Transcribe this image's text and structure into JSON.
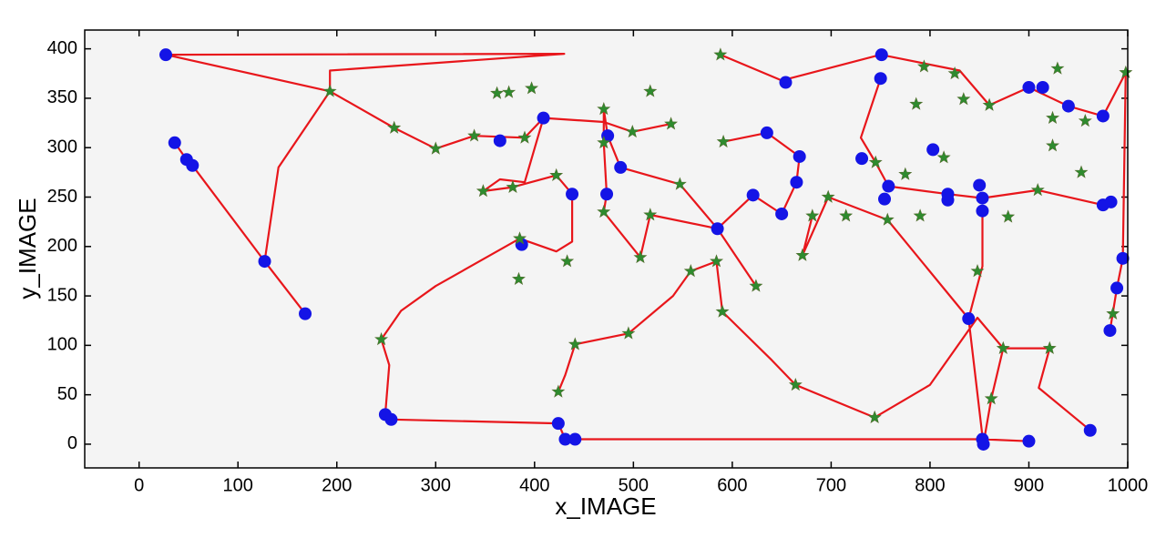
{
  "chart_data": {
    "type": "scatter",
    "xlabel": "x_IMAGE",
    "ylabel": "y_IMAGE",
    "xlim": [
      -55,
      1000
    ],
    "ylim": [
      -24,
      419
    ],
    "xticks": [
      0,
      100,
      200,
      300,
      400,
      500,
      600,
      700,
      800,
      900,
      1000
    ],
    "yticks": [
      0,
      50,
      100,
      150,
      200,
      250,
      300,
      350,
      400
    ],
    "series": [
      {
        "mode": "line",
        "color": "#e8161b",
        "x": [
          193,
          27,
          430,
          193,
          193,
          141,
          127,
          168,
          null,
          36,
          48,
          54,
          127,
          168,
          null,
          193,
          258,
          300,
          339,
          390,
          409,
          470,
          499,
          538,
          null,
          245,
          253,
          249,
          255,
          424,
          431,
          441,
          853,
          900,
          null,
          245,
          265,
          300,
          385,
          422,
          438,
          438,
          422,
          378,
          348,
          365,
          390,
          409,
          null,
          424,
          431,
          441,
          495,
          540,
          558,
          584,
          590,
          640,
          664,
          744,
          800,
          848,
          874,
          921,
          910,
          962,
          null,
          585,
          547,
          487,
          474,
          470,
          470,
          473,
          470,
          507,
          517,
          585,
          624,
          null,
          588,
          650,
          750,
          830,
          860,
          900,
          940,
          975,
          998,
          995,
          989,
          982,
          null,
          591,
          635,
          668,
          665,
          650,
          621,
          585,
          null,
          750,
          730,
          745,
          758,
          818,
          853,
          909,
          975,
          983,
          null,
          853,
          853,
          839,
          757,
          697,
          671,
          681,
          null,
          839,
          854,
          862,
          874
        ],
        "y": [
          357,
          394,
          395,
          378,
          357,
          280,
          185,
          132,
          null,
          305,
          288,
          282,
          185,
          132,
          null,
          357,
          320,
          299,
          312,
          310,
          330,
          326,
          316,
          324,
          null,
          106,
          80,
          30,
          25,
          21,
          5,
          5,
          5,
          3,
          null,
          106,
          135,
          160,
          208,
          195,
          205,
          253,
          272,
          260,
          256,
          268,
          265,
          330,
          null,
          53,
          70,
          101,
          112,
          150,
          175,
          185,
          134,
          85,
          60,
          27,
          60,
          128,
          97,
          97,
          57,
          14,
          null,
          218,
          263,
          280,
          312,
          339,
          305,
          253,
          235,
          189,
          232,
          218,
          160,
          null,
          394,
          368,
          394,
          378,
          343,
          361,
          342,
          332,
          376,
          188,
          158,
          115,
          null,
          306,
          315,
          291,
          265,
          233,
          252,
          218,
          null,
          370,
          310,
          285,
          261,
          253,
          249,
          257,
          242,
          245,
          null,
          236,
          180,
          127,
          227,
          250,
          191,
          231,
          null,
          127,
          0,
          46,
          97
        ]
      },
      {
        "mode": "markers",
        "marker": "circle",
        "color": "#1414e6",
        "x": [
          27,
          36,
          48,
          54,
          127,
          168,
          249,
          255,
          424,
          431,
          441,
          853,
          854,
          900,
          962,
          982,
          989,
          995,
          983,
          975,
          975,
          940,
          914,
          900,
          751,
          750,
          654,
          635,
          621,
          650,
          665,
          668,
          731,
          758,
          754,
          803,
          818,
          818,
          850,
          853,
          853,
          839,
          585,
          487,
          473,
          474,
          438,
          409,
          365,
          387
        ],
        "y": [
          394,
          305,
          288,
          282,
          185,
          132,
          30,
          25,
          21,
          5,
          5,
          5,
          0,
          3,
          14,
          115,
          158,
          188,
          245,
          242,
          332,
          342,
          361,
          361,
          394,
          370,
          366,
          315,
          252,
          233,
          265,
          291,
          289,
          261,
          248,
          298,
          253,
          247,
          262,
          249,
          236,
          127,
          218,
          280,
          253,
          312,
          253,
          330,
          307,
          202
        ]
      },
      {
        "mode": "markers",
        "marker": "star",
        "color": "#2e8b2e",
        "x": [
          193,
          258,
          300,
          339,
          348,
          362,
          374,
          397,
          390,
          378,
          385,
          384,
          245,
          424,
          441,
          495,
          433,
          422,
          470,
          470,
          470,
          517,
          499,
          538,
          507,
          517,
          547,
          558,
          584,
          590,
          588,
          591,
          624,
          664,
          671,
          681,
          697,
          715,
          744,
          745,
          757,
          786,
          794,
          775,
          790,
          814,
          834,
          825,
          860,
          848,
          874,
          862,
          921,
          879,
          924,
          924,
          957,
          929,
          998,
          909,
          953,
          985
        ],
        "y": [
          357,
          320,
          299,
          312,
          256,
          355,
          356,
          360,
          310,
          260,
          208,
          167,
          106,
          53,
          101,
          112,
          185,
          272,
          339,
          305,
          235,
          357,
          316,
          324,
          189,
          232,
          263,
          175,
          185,
          134,
          394,
          306,
          160,
          60,
          191,
          231,
          250,
          231,
          27,
          285,
          227,
          344,
          382,
          273,
          231,
          290,
          349,
          375,
          343,
          175,
          97,
          46,
          97,
          230,
          302,
          330,
          327,
          380,
          376,
          257,
          275,
          132
        ]
      }
    ]
  }
}
